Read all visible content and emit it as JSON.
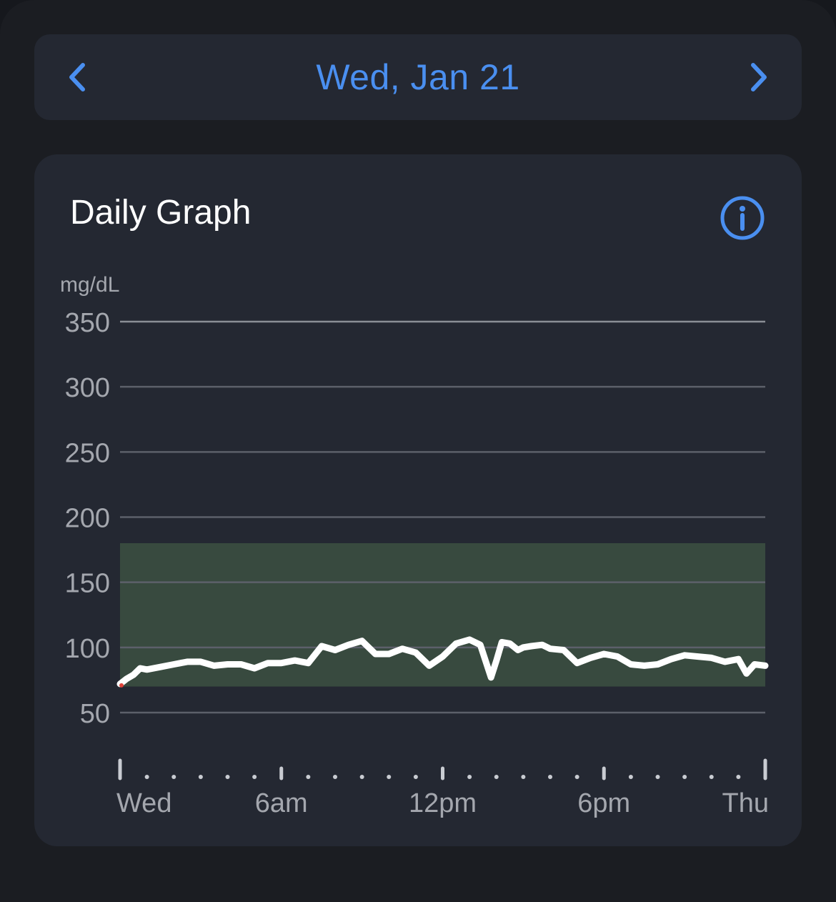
{
  "date_nav": {
    "date": "Wed, Jan 21",
    "prev_icon": "chevron-left-icon",
    "next_icon": "chevron-right-icon"
  },
  "card": {
    "title": "Daily Graph",
    "info_icon": "info-icon"
  },
  "colors": {
    "accent": "#4a8ff0",
    "target_range": "#384a3f",
    "line": "#ffffff",
    "grid": "#5c606a",
    "axis_text": "#a4a7ae",
    "low": "#e0433a"
  },
  "chart_data": {
    "type": "line",
    "ylabel": "mg/dL",
    "ylim": [
      50,
      350
    ],
    "yticks": [
      350,
      300,
      250,
      200,
      150,
      100,
      50
    ],
    "xlim": [
      0,
      24
    ],
    "xticks": [
      {
        "x": 0,
        "label": "Wed"
      },
      {
        "x": 6,
        "label": "6am"
      },
      {
        "x": 12,
        "label": "12pm"
      },
      {
        "x": 18,
        "label": "6pm"
      },
      {
        "x": 24,
        "label": "Thu"
      }
    ],
    "target_range": [
      70,
      180
    ],
    "grid": true,
    "series": [
      {
        "x": [
          0,
          0.25,
          0.5,
          0.75,
          1,
          1.5,
          2,
          2.5,
          3,
          3.5,
          4,
          4.5,
          5,
          5.5,
          6,
          6.5,
          7,
          7.5,
          8,
          8.5,
          9,
          9.5,
          10,
          10.5,
          11,
          11.5,
          12,
          12.5,
          13,
          13.4,
          13.8,
          14,
          14.2,
          14.5,
          14.8,
          15,
          15.3,
          15.7,
          16,
          16.5,
          17,
          17.5,
          18,
          18.5,
          19,
          19.5,
          20,
          20.5,
          21,
          21.5,
          22,
          22.5,
          23,
          23.3,
          23.6,
          24
        ],
        "values": [
          72,
          76,
          79,
          84,
          83,
          85,
          87,
          89,
          89,
          86,
          87,
          87,
          84,
          88,
          88,
          90,
          88,
          101,
          98,
          102,
          105,
          95,
          95,
          99,
          96,
          86,
          93,
          103,
          106,
          102,
          77,
          90,
          104,
          103,
          98,
          100,
          101,
          102,
          99,
          98,
          88,
          92,
          95,
          93,
          87,
          86,
          87,
          91,
          94,
          93,
          92,
          89,
          91,
          80,
          87,
          86
        ]
      }
    ]
  }
}
